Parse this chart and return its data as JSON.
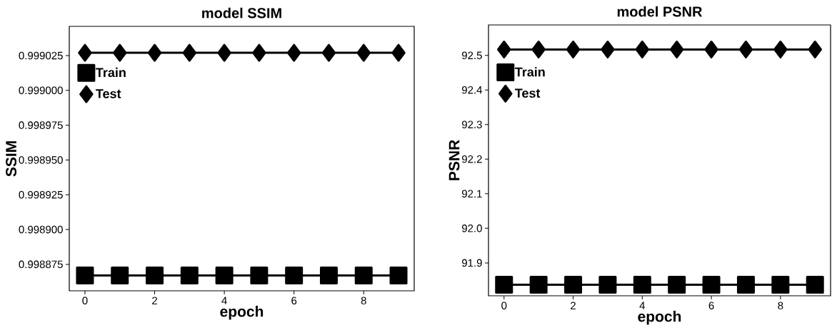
{
  "chart_data": [
    {
      "type": "line",
      "title": "model SSIM",
      "xlabel": "epoch",
      "ylabel": "SSIM",
      "x": [
        0,
        1,
        2,
        3,
        4,
        5,
        6,
        7,
        8,
        9
      ],
      "series": [
        {
          "name": "Train",
          "color": "#000000",
          "marker": "square",
          "values": [
            0.998867,
            0.998867,
            0.998867,
            0.998867,
            0.998867,
            0.998867,
            0.998867,
            0.998867,
            0.998867,
            0.998867
          ]
        },
        {
          "name": "Test",
          "color": "#000000",
          "marker": "diamond",
          "values": [
            0.999027,
            0.999027,
            0.999027,
            0.999027,
            0.999027,
            0.999027,
            0.999027,
            0.999027,
            0.999027,
            0.999027
          ]
        }
      ],
      "xlim": [
        -0.45,
        9.45
      ],
      "ylim": [
        0.998856,
        0.999046
      ],
      "xticks": [
        0,
        2,
        4,
        6,
        8
      ],
      "yticks": [
        0.998875,
        {
          "value": 0.9989,
          "label": "0.998900"
        },
        0.998925,
        {
          "value": 0.99895,
          "label": "0.998950"
        },
        0.998975,
        {
          "value": 0.999,
          "label": "0.999000"
        },
        0.999025
      ],
      "legend": "top left",
      "grid": false
    },
    {
      "type": "line",
      "title": "model PSNR",
      "xlabel": "epoch",
      "ylabel": "PSNR",
      "x": [
        0,
        1,
        2,
        3,
        4,
        5,
        6,
        7,
        8,
        9
      ],
      "series": [
        {
          "name": "Train",
          "color": "#000000",
          "marker": "square",
          "values": [
            91.837,
            91.837,
            91.837,
            91.837,
            91.837,
            91.837,
            91.837,
            91.837,
            91.837,
            91.837
          ]
        },
        {
          "name": "Test",
          "color": "#000000",
          "marker": "diamond",
          "values": [
            92.517,
            92.517,
            92.517,
            92.517,
            92.517,
            92.517,
            92.517,
            92.517,
            92.517,
            92.517
          ]
        }
      ],
      "xlim": [
        -0.45,
        9.45
      ],
      "ylim": [
        91.805,
        92.588
      ],
      "xticks": [
        0,
        2,
        4,
        6,
        8
      ],
      "yticks": [
        91.9,
        {
          "value": 92.0,
          "label": "92.0"
        },
        92.1,
        92.2,
        92.3,
        92.4,
        92.5
      ],
      "legend": "top left",
      "grid": false
    }
  ]
}
